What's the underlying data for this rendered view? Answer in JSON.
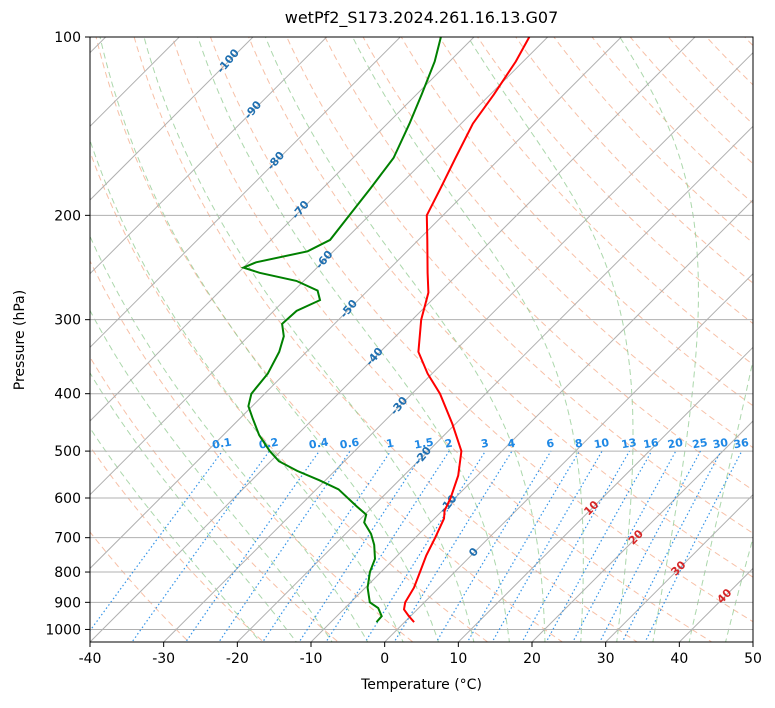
{
  "chart_data": {
    "type": "line",
    "subtype": "skew-t log-p diagram",
    "title": "wetPf2_S173.2024.261.16.13.G07",
    "xlabel": "Temperature (°C)",
    "ylabel": "Pressure (hPa)",
    "xlim": [
      -40,
      50
    ],
    "ylim": [
      1050,
      100
    ],
    "y_scale": "log",
    "x_ticks": [
      -40,
      -30,
      -20,
      -10,
      0,
      10,
      20,
      30,
      40,
      50
    ],
    "y_ticks": [
      100,
      200,
      300,
      400,
      500,
      600,
      700,
      800,
      900,
      1000
    ],
    "grid": true,
    "colors": {
      "temperature": "#ff0000",
      "dewpoint": "#008000",
      "isotherm": "#b0b0b0",
      "dry_adiabat": "#f4a582",
      "moist_adiabat": "#8fc98f",
      "mixing_ratio": "#1e88e5",
      "isotherm_label": "#1f6fb0",
      "dry_adiabat_label": "#d62728"
    },
    "series": [
      {
        "name": "Temperature",
        "points": [
          {
            "p": 972,
            "t": 1.3
          },
          {
            "p": 950,
            "t": -0.2
          },
          {
            "p": 925,
            "t": -1.8
          },
          {
            "p": 900,
            "t": -2.6
          },
          {
            "p": 850,
            "t": -3.4
          },
          {
            "p": 800,
            "t": -4.7
          },
          {
            "p": 750,
            "t": -6.1
          },
          {
            "p": 700,
            "t": -7.3
          },
          {
            "p": 650,
            "t": -8.7
          },
          {
            "p": 630,
            "t": -9.7
          },
          {
            "p": 600,
            "t": -10.6
          },
          {
            "p": 550,
            "t": -12.6
          },
          {
            "p": 500,
            "t": -15.5
          },
          {
            "p": 450,
            "t": -20.4
          },
          {
            "p": 400,
            "t": -26.2
          },
          {
            "p": 370,
            "t": -30.6
          },
          {
            "p": 340,
            "t": -34.8
          },
          {
            "p": 300,
            "t": -38.8
          },
          {
            "p": 270,
            "t": -41.5
          },
          {
            "p": 250,
            "t": -44.3
          },
          {
            "p": 220,
            "t": -48.8
          },
          {
            "p": 200,
            "t": -52.2
          },
          {
            "p": 180,
            "t": -54.0
          },
          {
            "p": 160,
            "t": -56.1
          },
          {
            "p": 140,
            "t": -58.4
          },
          {
            "p": 125,
            "t": -59.5
          },
          {
            "p": 110,
            "t": -61.0
          },
          {
            "p": 100,
            "t": -62.5
          }
        ]
      },
      {
        "name": "Dewpoint",
        "points": [
          {
            "p": 972,
            "t": -3.8
          },
          {
            "p": 950,
            "t": -3.9
          },
          {
            "p": 920,
            "t": -5.5
          },
          {
            "p": 900,
            "t": -7.4
          },
          {
            "p": 850,
            "t": -9.7
          },
          {
            "p": 800,
            "t": -11.5
          },
          {
            "p": 760,
            "t": -12.6
          },
          {
            "p": 720,
            "t": -14.6
          },
          {
            "p": 690,
            "t": -16.5
          },
          {
            "p": 660,
            "t": -19.0
          },
          {
            "p": 640,
            "t": -19.8
          },
          {
            "p": 620,
            "t": -22.2
          },
          {
            "p": 580,
            "t": -27.0
          },
          {
            "p": 560,
            "t": -30.8
          },
          {
            "p": 540,
            "t": -35.1
          },
          {
            "p": 520,
            "t": -38.9
          },
          {
            "p": 500,
            "t": -41.5
          },
          {
            "p": 470,
            "t": -45.1
          },
          {
            "p": 440,
            "t": -48.3
          },
          {
            "p": 420,
            "t": -50.5
          },
          {
            "p": 400,
            "t": -51.8
          },
          {
            "p": 370,
            "t": -52.3
          },
          {
            "p": 340,
            "t": -53.7
          },
          {
            "p": 320,
            "t": -55.2
          },
          {
            "p": 305,
            "t": -57.1
          },
          {
            "p": 290,
            "t": -56.9
          },
          {
            "p": 278,
            "t": -55.2
          },
          {
            "p": 268,
            "t": -56.8
          },
          {
            "p": 258,
            "t": -61.0
          },
          {
            "p": 250,
            "t": -67.1
          },
          {
            "p": 245,
            "t": -70.0
          },
          {
            "p": 240,
            "t": -69.0
          },
          {
            "p": 230,
            "t": -63.5
          },
          {
            "p": 220,
            "t": -62.0
          },
          {
            "p": 200,
            "t": -62.7
          },
          {
            "p": 180,
            "t": -63.5
          },
          {
            "p": 160,
            "t": -64.5
          },
          {
            "p": 140,
            "t": -67.0
          },
          {
            "p": 125,
            "t": -69.3
          },
          {
            "p": 110,
            "t": -72.0
          },
          {
            "p": 100,
            "t": -74.5
          }
        ]
      }
    ],
    "isotherm_labels": [
      -100,
      -90,
      -80,
      -70,
      -60,
      -50,
      -40,
      -30,
      -20,
      -10,
      0
    ],
    "dry_adiabat_labels": [
      10,
      20,
      30,
      40
    ],
    "mixing_ratio_labels": [
      "0.1",
      "0.2",
      "0.4",
      "0.6",
      "1",
      "1.5",
      "2",
      "3",
      "4",
      "6",
      "8",
      "10",
      "13",
      "16",
      "20",
      "25",
      "30",
      "36"
    ],
    "mixing_ratio_values": [
      0.1,
      0.2,
      0.4,
      0.6,
      1,
      1.5,
      2,
      3,
      4,
      6,
      8,
      10,
      13,
      16,
      20,
      25,
      30,
      36
    ]
  }
}
